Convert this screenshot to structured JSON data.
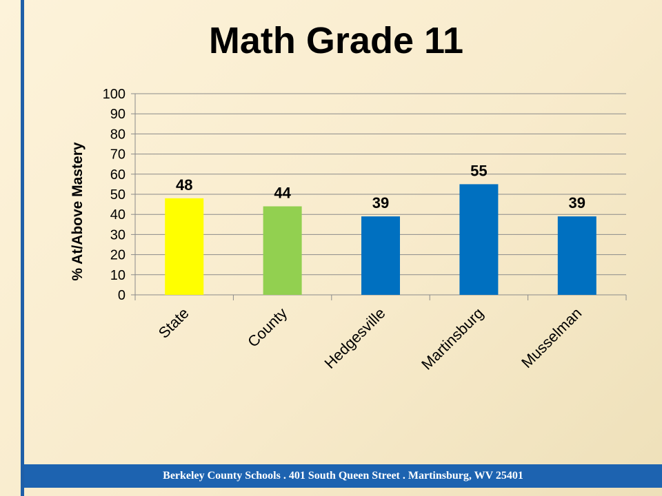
{
  "slide": {
    "title": "Math Grade 11",
    "footer": "Berkeley County Schools . 401 South Queen Street . Martinsburg, WV  25401"
  },
  "colors": {
    "background": "#fdf3da",
    "accent_bar": "#1f5fa8",
    "footer_bg": "#1d63b0",
    "state": "#ffff00",
    "county": "#92d050",
    "school": "#0070c0"
  },
  "chart_data": {
    "type": "bar",
    "title": "Math Grade 11",
    "xlabel": "",
    "ylabel": "% At/Above Mastery",
    "ylim": [
      0,
      100
    ],
    "yticks": [
      0,
      10,
      20,
      30,
      40,
      50,
      60,
      70,
      80,
      90,
      100
    ],
    "grid": true,
    "categories": [
      "State",
      "County",
      "Hedgesville",
      "Martinsburg",
      "Musselman"
    ],
    "values": [
      48,
      44,
      39,
      55,
      39
    ],
    "data_labels": [
      "48",
      "44",
      "39",
      "55",
      "39"
    ],
    "bar_colors": [
      "#ffff00",
      "#92d050",
      "#0070c0",
      "#0070c0",
      "#0070c0"
    ]
  }
}
